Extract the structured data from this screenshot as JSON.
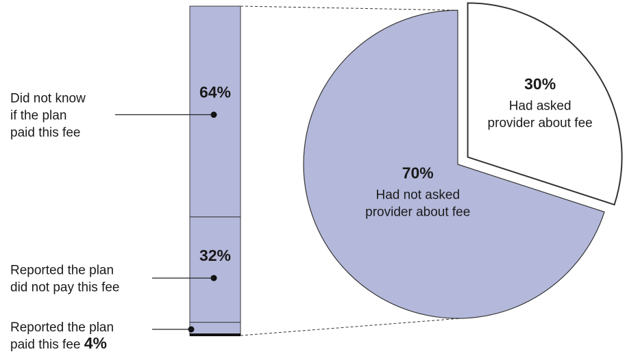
{
  "chart_data": [
    {
      "type": "bar",
      "stacked": true,
      "segments": [
        {
          "label": "Did not know if the plan paid this fee",
          "lines": [
            "Did not know",
            "if the plan",
            "paid this fee"
          ],
          "value": 64,
          "value_label": "64%",
          "color": "#b4b9db"
        },
        {
          "label": "Reported the plan did not pay this fee",
          "lines": [
            "Reported the plan",
            "did not pay this fee"
          ],
          "value": 32,
          "value_label": "32%",
          "color": "#b4b9db"
        },
        {
          "label": "Reported the plan paid this fee",
          "lines": [
            "Reported the plan",
            "paid this fee"
          ],
          "value": 4,
          "value_label": "4%",
          "color": "#b4b9db"
        }
      ]
    },
    {
      "type": "pie",
      "slices": [
        {
          "label": "Had not asked provider about fee",
          "lines": [
            "Had not asked",
            "provider about fee"
          ],
          "value": 70,
          "value_label": "70%",
          "color": "#b4b9db",
          "exploded": false
        },
        {
          "label": "Had asked provider about fee",
          "lines": [
            "Had asked",
            "provider about fee"
          ],
          "value": 30,
          "value_label": "30%",
          "color": "#ffffff",
          "exploded": true
        }
      ]
    }
  ]
}
